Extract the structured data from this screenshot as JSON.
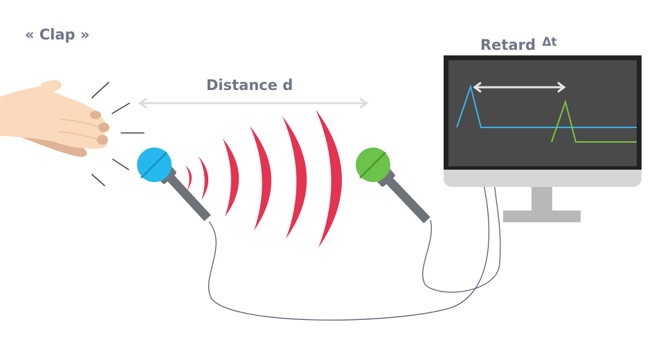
{
  "labels": {
    "clap": "« Clap »",
    "distance": "Distance d",
    "delay_word": "Retard",
    "delay_symbol": "Δt"
  },
  "colors": {
    "text": "#6e7686",
    "sound_waves": "#e33452",
    "mic_left_head": "#25b8ee",
    "mic_right_head": "#6cc24a",
    "mic_body": "#6e7378",
    "screen_bg": "#4a4a4a",
    "screen_frame": "#222222",
    "monitor_stand": "#b8b8b8",
    "signal_left": "#3ab4e8",
    "signal_right": "#7cc242",
    "measure_arrow": "#e6e6e6",
    "cable": "#5a5a70",
    "hand_skin": "#fbd9bd",
    "hand_shadow": "#deb494"
  },
  "icons": {
    "hand": "clapping-hand-icon",
    "mic_left": "microphone-icon",
    "mic_right": "microphone-icon",
    "monitor": "monitor-icon"
  }
}
